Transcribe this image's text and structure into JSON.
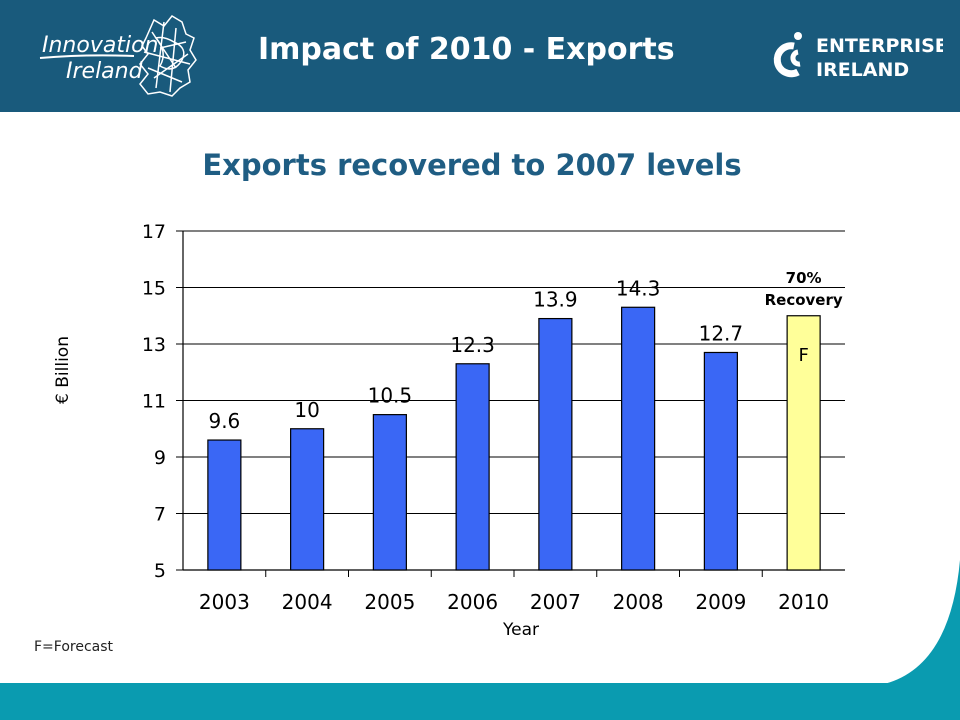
{
  "header": {
    "title": "Impact of 2010 - Exports",
    "left_logo": {
      "line1": "Innovation",
      "line2": "Ireland"
    },
    "right_logo": {
      "line1": "ENTERPRISE",
      "line2": "IRELAND"
    }
  },
  "subtitle": "Exports recovered to 2007 levels",
  "footnote": "F=Forecast",
  "colors": {
    "header_bg": "#195a7c",
    "footer_bg": "#0a9bb0",
    "bar_actual": "#3a67f5",
    "bar_forecast": "#ffff99",
    "title_text": "#1f5d83"
  },
  "chart_data": {
    "type": "bar",
    "title": "Exports recovered to 2007 levels",
    "xlabel": "Year",
    "ylabel": "€ Billion",
    "ylim": [
      5,
      17
    ],
    "yticks": [
      5,
      7,
      9,
      11,
      13,
      15,
      17
    ],
    "grid": true,
    "categories": [
      "2003",
      "2004",
      "2005",
      "2006",
      "2007",
      "2008",
      "2009",
      "2010"
    ],
    "values": [
      9.6,
      10,
      10.5,
      12.3,
      13.9,
      14.3,
      12.7,
      14.0
    ],
    "labels": [
      "9.6",
      "10",
      "10.5",
      "12.3",
      "13.9",
      "14.3",
      "12.7",
      "F"
    ],
    "forecast": [
      false,
      false,
      false,
      false,
      false,
      false,
      false,
      true
    ],
    "annotation": {
      "category": "2010",
      "line1": "70%",
      "line2": "Recovery"
    }
  }
}
